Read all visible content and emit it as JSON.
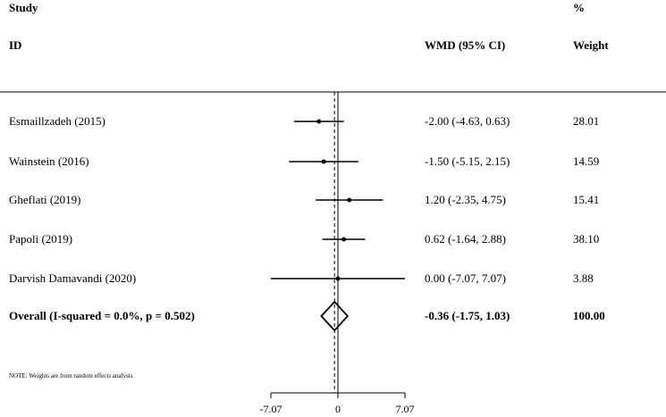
{
  "header": {
    "study_line1": "Study",
    "study_line2": "ID",
    "effect_label": "WMD (95% CI)",
    "weight_line1": "%",
    "weight_line2": "Weight"
  },
  "chart_data": {
    "type": "forest",
    "xlim": [
      -7.07,
      7.07
    ],
    "xticks": [
      "-7.07",
      "0",
      "7.07"
    ],
    "reference_line": 0,
    "studies": [
      {
        "label": "Esmaillzadeh (2015)",
        "est": -2.0,
        "lo": -4.63,
        "hi": 0.63,
        "ci_text": "-2.00 (-4.63, 0.63)",
        "weight": "28.01"
      },
      {
        "label": "Wainstein (2016)",
        "est": -1.5,
        "lo": -5.15,
        "hi": 2.15,
        "ci_text": "-1.50 (-5.15, 2.15)",
        "weight": "14.59"
      },
      {
        "label": "Gheflati (2019)",
        "est": 1.2,
        "lo": -2.35,
        "hi": 4.75,
        "ci_text": "1.20 (-2.35, 4.75)",
        "weight": "15.41"
      },
      {
        "label": "Papoli (2019)",
        "est": 0.62,
        "lo": -1.64,
        "hi": 2.88,
        "ci_text": "0.62 (-1.64, 2.88)",
        "weight": "38.10"
      },
      {
        "label": "Darvish Damavandi (2020)",
        "est": 0.0,
        "lo": -7.07,
        "hi": 7.07,
        "ci_text": "0.00 (-7.07, 7.07)",
        "weight": "3.88"
      }
    ],
    "overall": {
      "label": "Overall  (I-squared = 0.0%, p = 0.502)",
      "est": -0.36,
      "lo": -1.75,
      "hi": 1.03,
      "ci_text": "-0.36 (-1.75, 1.03)",
      "weight": "100.00"
    },
    "note": "NOTE: Weights are from random effects analysis"
  }
}
